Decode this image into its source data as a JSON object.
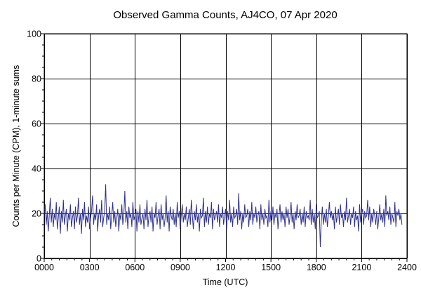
{
  "chart_data": {
    "type": "line",
    "title": "Observed Gamma Counts, AJ4CO, 07 Apr 2020",
    "xlabel": "Time (UTC)",
    "ylabel": "Counts per Minute (CPM), 1-minute sums",
    "xlim": [
      0,
      1440
    ],
    "ylim": [
      0,
      100
    ],
    "x_unit": "minutes since 0000 UTC",
    "x_ticks": [
      {
        "value": 0,
        "label": "0000"
      },
      {
        "value": 180,
        "label": "0300"
      },
      {
        "value": 360,
        "label": "0600"
      },
      {
        "value": 540,
        "label": "0900"
      },
      {
        "value": 720,
        "label": "1200"
      },
      {
        "value": 900,
        "label": "1500"
      },
      {
        "value": 1080,
        "label": "1800"
      },
      {
        "value": 1260,
        "label": "2100"
      },
      {
        "value": 1440,
        "label": "2400"
      }
    ],
    "y_ticks": [
      {
        "value": 0,
        "label": "0"
      },
      {
        "value": 20,
        "label": "20"
      },
      {
        "value": 40,
        "label": "40"
      },
      {
        "value": 60,
        "label": "60"
      },
      {
        "value": 80,
        "label": "80"
      },
      {
        "value": 100,
        "label": "100"
      }
    ],
    "grid": true,
    "series": [
      {
        "name": "",
        "color": "#2e3192",
        "sampling_interval_minutes": 4,
        "values": [
          18,
          24,
          15,
          21,
          12,
          19,
          27,
          16,
          22,
          14,
          20,
          17,
          25,
          13,
          18,
          23,
          11,
          21,
          16,
          26,
          15,
          19,
          22,
          12,
          20,
          17,
          24,
          14,
          18,
          21,
          13,
          23,
          16,
          19,
          27,
          15,
          20,
          11,
          22,
          17,
          25,
          14,
          19,
          16,
          23,
          13,
          18,
          21,
          28,
          15,
          20,
          17,
          24,
          12,
          19,
          22,
          16,
          26,
          14,
          18,
          21,
          33,
          15,
          20,
          17,
          23,
          13,
          19,
          25,
          16,
          21,
          14,
          18,
          22,
          12,
          20,
          17,
          24,
          15,
          19,
          30,
          16,
          21,
          13,
          23,
          18,
          20,
          14,
          25,
          17,
          19,
          22,
          12,
          21,
          16,
          24,
          15,
          18,
          20,
          13,
          22,
          17,
          26,
          14,
          19,
          21,
          16,
          23,
          12,
          20,
          18,
          25,
          15,
          19,
          22,
          13,
          24,
          17,
          20,
          14,
          18,
          28,
          16,
          21,
          12,
          23,
          19,
          17,
          22,
          15,
          20,
          14,
          25,
          18,
          21,
          13,
          19,
          24,
          16,
          20,
          17,
          23,
          14,
          18,
          22,
          15,
          26,
          19,
          13,
          21,
          17,
          24,
          16,
          20,
          12,
          22,
          18,
          19,
          27,
          14,
          21,
          16,
          23,
          15,
          20,
          18,
          25,
          13,
          22,
          17,
          19,
          21,
          16,
          24,
          14,
          20,
          18,
          23,
          15,
          19,
          22,
          13,
          21,
          17,
          26,
          16,
          20,
          14,
          23,
          18,
          19,
          22,
          15,
          29,
          17,
          21,
          13,
          20,
          16,
          24,
          18,
          19,
          22,
          14,
          21,
          17,
          25,
          15,
          20,
          18,
          23,
          16,
          19,
          21,
          13,
          24,
          17,
          20,
          15,
          22,
          18,
          19,
          14,
          26,
          16,
          21,
          17,
          23,
          15,
          20,
          18,
          22,
          13,
          19,
          24,
          16,
          21,
          17,
          20,
          14,
          23,
          18,
          22,
          15,
          19,
          25,
          16,
          20,
          13,
          21,
          17,
          24,
          18,
          19,
          22,
          15,
          20,
          16,
          23,
          14,
          21,
          18,
          19,
          17,
          26,
          15,
          22,
          16,
          20,
          13,
          24,
          18,
          19,
          21,
          5,
          17,
          23,
          15,
          20,
          16,
          22,
          14,
          19,
          25,
          18,
          21,
          17,
          20,
          13,
          23,
          16,
          19,
          22,
          15,
          24,
          18,
          20,
          14,
          21,
          17,
          27,
          16,
          19,
          22,
          15,
          20,
          18,
          23,
          14,
          21,
          17,
          19,
          12,
          24,
          16,
          20,
          22,
          15,
          21,
          18,
          19,
          26,
          17,
          23,
          14,
          20,
          16,
          22,
          19,
          15,
          21,
          13,
          18,
          24,
          17,
          20,
          16,
          22,
          14,
          28,
          19,
          21,
          17,
          23,
          15,
          20,
          18,
          16,
          25,
          14,
          21,
          19,
          22,
          17,
          20,
          15
        ]
      }
    ]
  }
}
